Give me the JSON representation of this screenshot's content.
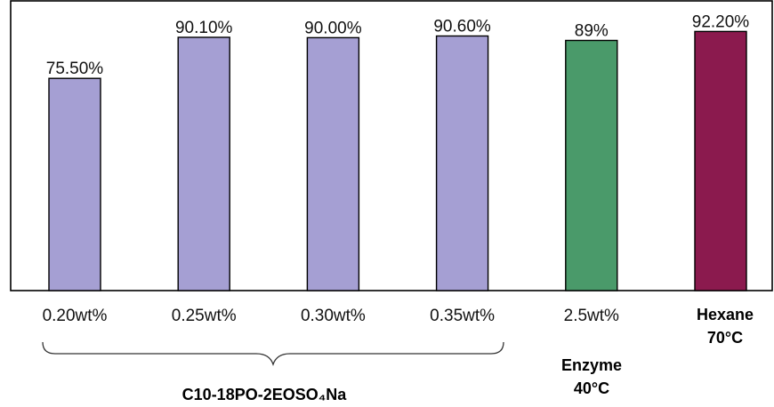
{
  "chart_data": {
    "type": "bar",
    "categories": [
      "0.20wt%",
      "0.25wt%",
      "0.30wt%",
      "0.35wt%",
      "2.5wt%",
      "Hexane 70°C"
    ],
    "values": [
      75.5,
      90.1,
      90.0,
      90.6,
      89,
      92.2
    ],
    "value_labels": [
      "75.50%",
      "90.10%",
      "90.00%",
      "90.60%",
      "89%",
      "92.20%"
    ],
    "bar_colors": [
      "#a59fd3",
      "#a59fd3",
      "#a59fd3",
      "#a59fd3",
      "#4a9a6a",
      "#8b1a4e"
    ],
    "category_label_weights": [
      "normal",
      "normal",
      "normal",
      "normal",
      "normal",
      "bold"
    ],
    "hexane_label_lines": [
      "Hexane",
      "70°C"
    ],
    "enzyme_label_lines": [
      "Enzyme",
      "40°C"
    ],
    "group_label": "C10-18PO-2EOSO₄Na",
    "group_span": [
      0,
      3
    ],
    "title": "",
    "xlabel": "",
    "ylabel": "",
    "grid": false,
    "y_axis_ticks_shown": false
  }
}
